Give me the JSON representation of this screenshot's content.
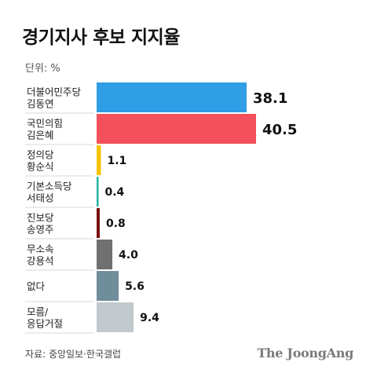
{
  "title": "경기지사 후보 지지율",
  "unit_label": "단위: %",
  "source": "자료: 중앙일보·한국갤럽",
  "brand": "The JoongAng",
  "chart_data": {
    "type": "bar",
    "orientation": "horizontal",
    "categories": [
      [
        "더불어민주당",
        "김동연"
      ],
      [
        "국민의힘",
        "김은혜"
      ],
      [
        "정의당",
        "황순식"
      ],
      [
        "기본소득당",
        "서태성"
      ],
      [
        "진보당",
        "송영주"
      ],
      [
        "무소속",
        "강용석"
      ],
      [
        "없다"
      ],
      [
        "모름/",
        "응답거절"
      ]
    ],
    "values": [
      38.1,
      40.5,
      1.1,
      0.4,
      0.8,
      4.0,
      5.6,
      9.4
    ],
    "value_labels": [
      "38.1",
      "40.5",
      "1.1",
      "0.4",
      "0.8",
      "4.0",
      "5.6",
      "9.4"
    ],
    "colors": [
      "#2f9ee6",
      "#f2505a",
      "#f5c200",
      "#26b3a5",
      "#7a1010",
      "#707070",
      "#6f8d9b",
      "#c1c9ce"
    ],
    "xlim": [
      0,
      40.5
    ],
    "grid": false
  }
}
